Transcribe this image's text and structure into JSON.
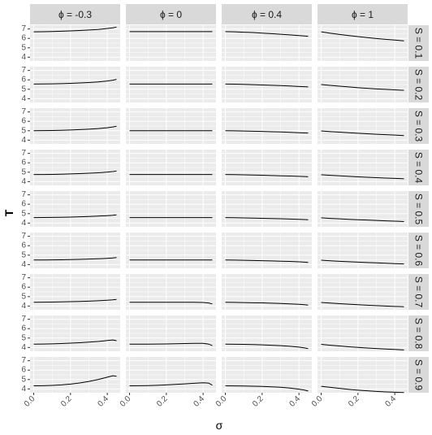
{
  "chart_data": {
    "type": "line",
    "xlabel": "σ",
    "ylabel": "T",
    "xlim": [
      -0.02,
      0.47
    ],
    "ylim": [
      3.6,
      7.4
    ],
    "x_ticks": [
      0.0,
      0.2,
      0.4
    ],
    "x_tick_labels": [
      "0.0",
      "0.2",
      "0.4"
    ],
    "y_ticks": [
      4,
      5,
      6,
      7
    ],
    "y_tick_labels": [
      "4",
      "5",
      "6",
      "7"
    ],
    "grid": true,
    "x": [
      0.0,
      0.05,
      0.1,
      0.15,
      0.2,
      0.25,
      0.3,
      0.35,
      0.4,
      0.43,
      0.45
    ],
    "columns": [
      {
        "label": "ϕ = -0.3"
      },
      {
        "label": "ϕ = 0"
      },
      {
        "label": "ϕ = 0.4"
      },
      {
        "label": "ϕ = 1"
      }
    ],
    "rows": [
      {
        "label": "S = 0.1"
      },
      {
        "label": "S = 0.2"
      },
      {
        "label": "S = 0.3"
      },
      {
        "label": "S = 0.4"
      },
      {
        "label": "S = 0.5"
      },
      {
        "label": "S = 0.6"
      },
      {
        "label": "S = 0.7"
      },
      {
        "label": "S = 0.8"
      },
      {
        "label": "S = 0.9"
      }
    ],
    "panels": [
      [
        [
          6.7,
          6.71,
          6.73,
          6.76,
          6.8,
          6.84,
          6.89,
          6.95,
          7.05,
          7.12,
          7.2
        ],
        [
          6.72,
          6.72,
          6.72,
          6.72,
          6.72,
          6.72,
          6.72,
          6.72,
          6.72,
          6.72,
          6.72
        ],
        [
          6.72,
          6.7,
          6.66,
          6.62,
          6.56,
          6.5,
          6.44,
          6.37,
          6.3,
          6.26,
          6.22
        ],
        [
          6.7,
          6.55,
          6.42,
          6.3,
          6.19,
          6.08,
          5.99,
          5.9,
          5.82,
          5.77,
          5.74
        ]
      ],
      [
        [
          5.55,
          5.56,
          5.58,
          5.6,
          5.63,
          5.67,
          5.72,
          5.78,
          5.88,
          5.96,
          6.05
        ],
        [
          5.55,
          5.55,
          5.55,
          5.55,
          5.55,
          5.55,
          5.55,
          5.55,
          5.55,
          5.55,
          5.55
        ],
        [
          5.55,
          5.54,
          5.52,
          5.49,
          5.46,
          5.42,
          5.39,
          5.35,
          5.3,
          5.27,
          5.25
        ],
        [
          5.5,
          5.41,
          5.33,
          5.25,
          5.17,
          5.1,
          5.04,
          4.99,
          4.94,
          4.91,
          4.89
        ]
      ],
      [
        [
          5.0,
          5.01,
          5.03,
          5.05,
          5.08,
          5.12,
          5.17,
          5.23,
          5.32,
          5.4,
          5.48
        ],
        [
          5.0,
          5.0,
          5.0,
          5.0,
          5.0,
          5.0,
          5.0,
          5.0,
          5.0,
          5.0,
          5.0
        ],
        [
          5.0,
          4.99,
          4.97,
          4.95,
          4.93,
          4.9,
          4.87,
          4.83,
          4.79,
          4.77,
          4.75
        ],
        [
          4.98,
          4.91,
          4.85,
          4.79,
          4.73,
          4.68,
          4.63,
          4.58,
          4.54,
          4.51,
          4.49
        ]
      ],
      [
        [
          4.75,
          4.76,
          4.77,
          4.79,
          4.82,
          4.85,
          4.89,
          4.94,
          5.01,
          5.07,
          5.12
        ],
        [
          4.75,
          4.75,
          4.75,
          4.75,
          4.75,
          4.75,
          4.75,
          4.75,
          4.75,
          4.75,
          4.75
        ],
        [
          4.75,
          4.74,
          4.72,
          4.7,
          4.68,
          4.65,
          4.62,
          4.59,
          4.56,
          4.54,
          4.52
        ],
        [
          4.73,
          4.67,
          4.61,
          4.56,
          4.51,
          4.46,
          4.42,
          4.38,
          4.34,
          4.32,
          4.3
        ]
      ],
      [
        [
          4.58,
          4.59,
          4.6,
          4.62,
          4.64,
          4.67,
          4.7,
          4.74,
          4.79,
          4.83,
          4.87
        ],
        [
          4.58,
          4.58,
          4.58,
          4.58,
          4.58,
          4.58,
          4.58,
          4.58,
          4.58,
          4.58,
          4.58
        ],
        [
          4.58,
          4.57,
          4.55,
          4.53,
          4.51,
          4.49,
          4.46,
          4.43,
          4.4,
          4.38,
          4.36
        ],
        [
          4.56,
          4.5,
          4.45,
          4.4,
          4.36,
          4.32,
          4.28,
          4.24,
          4.2,
          4.18,
          4.16
        ]
      ],
      [
        [
          4.48,
          4.49,
          4.5,
          4.51,
          4.53,
          4.55,
          4.58,
          4.61,
          4.66,
          4.7,
          4.74
        ],
        [
          4.48,
          4.48,
          4.48,
          4.48,
          4.48,
          4.48,
          4.48,
          4.48,
          4.48,
          4.48,
          4.48
        ],
        [
          4.48,
          4.47,
          4.45,
          4.43,
          4.41,
          4.39,
          4.36,
          4.33,
          4.29,
          4.26,
          4.23
        ],
        [
          4.46,
          4.4,
          4.35,
          4.3,
          4.26,
          4.22,
          4.18,
          4.14,
          4.1,
          4.08,
          4.06
        ]
      ],
      [
        [
          4.4,
          4.41,
          4.42,
          4.44,
          4.46,
          4.49,
          4.52,
          4.56,
          4.62,
          4.66,
          4.7
        ],
        [
          4.4,
          4.4,
          4.4,
          4.4,
          4.4,
          4.4,
          4.4,
          4.4,
          4.38,
          4.32,
          4.22
        ],
        [
          4.4,
          4.39,
          4.37,
          4.35,
          4.33,
          4.3,
          4.27,
          4.23,
          4.18,
          4.14,
          4.1
        ],
        [
          4.38,
          4.31,
          4.25,
          4.19,
          4.14,
          4.09,
          4.04,
          4.0,
          3.96,
          3.94,
          3.92
        ]
      ],
      [
        [
          4.36,
          4.37,
          4.39,
          4.42,
          4.46,
          4.51,
          4.57,
          4.64,
          4.74,
          4.8,
          4.72
        ],
        [
          4.36,
          4.36,
          4.36,
          4.37,
          4.38,
          4.4,
          4.42,
          4.44,
          4.44,
          4.36,
          4.2
        ],
        [
          4.36,
          4.35,
          4.33,
          4.31,
          4.28,
          4.24,
          4.19,
          4.13,
          4.04,
          3.96,
          3.88
        ],
        [
          4.33,
          4.24,
          4.16,
          4.08,
          4.01,
          3.95,
          3.89,
          3.84,
          3.79,
          3.76,
          3.74
        ]
      ],
      [
        [
          4.33,
          4.35,
          4.38,
          4.43,
          4.52,
          4.64,
          4.8,
          5.0,
          5.25,
          5.4,
          5.35
        ],
        [
          4.33,
          4.34,
          4.36,
          4.39,
          4.43,
          4.48,
          4.54,
          4.6,
          4.66,
          4.62,
          4.4
        ],
        [
          4.33,
          4.32,
          4.31,
          4.29,
          4.27,
          4.23,
          4.18,
          4.1,
          3.98,
          3.88,
          3.78
        ],
        [
          4.28,
          4.17,
          4.06,
          3.96,
          3.87,
          3.8,
          3.74,
          3.69,
          3.65,
          3.63,
          3.62
        ]
      ]
    ]
  }
}
